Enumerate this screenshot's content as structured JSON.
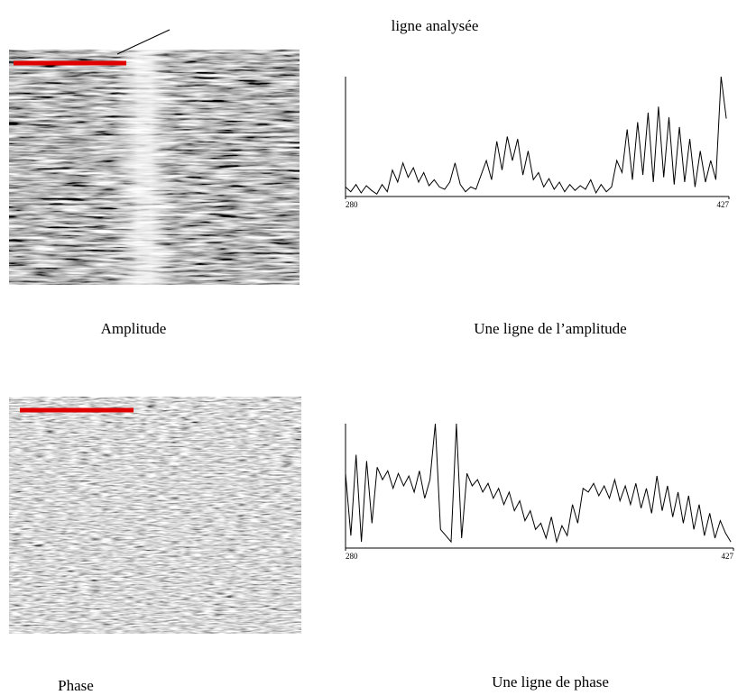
{
  "figure": {
    "annotation": "ligne analysée",
    "captions": [
      "Amplitude",
      "Une ligne de l’amplitude",
      "Phase",
      "Une ligne de phase"
    ]
  },
  "chart_data": [
    {
      "type": "line",
      "color": "#000000",
      "x": [
        280,
        282,
        284,
        286,
        288,
        290,
        292,
        294,
        296,
        298,
        300,
        302,
        304,
        306,
        308,
        310,
        312,
        314,
        316,
        318,
        320,
        322,
        324,
        326,
        328,
        330,
        332,
        334,
        336,
        338,
        340,
        342,
        344,
        346,
        348,
        350,
        352,
        354,
        356,
        358,
        360,
        362,
        364,
        366,
        368,
        370,
        372,
        374,
        376,
        378,
        380,
        382,
        384,
        386,
        388,
        390,
        392,
        394,
        396,
        398,
        400,
        402,
        404,
        406,
        408,
        410,
        412,
        414,
        416,
        418,
        420,
        422,
        424,
        426
      ],
      "values": [
        8,
        4,
        10,
        3,
        9,
        5,
        2,
        10,
        4,
        22,
        12,
        28,
        16,
        24,
        12,
        20,
        9,
        14,
        8,
        6,
        12,
        28,
        10,
        4,
        8,
        6,
        18,
        30,
        14,
        46,
        22,
        50,
        30,
        48,
        18,
        38,
        14,
        20,
        8,
        15,
        6,
        12,
        4,
        10,
        5,
        9,
        6,
        14,
        3,
        10,
        4,
        8,
        30,
        20,
        56,
        14,
        62,
        18,
        70,
        12,
        75,
        16,
        66,
        10,
        58,
        12,
        48,
        8,
        38,
        12,
        30,
        14,
        100,
        65
      ],
      "xlim": [
        280,
        427
      ],
      "xticks": [
        280,
        427
      ],
      "ylim": [
        0,
        100
      ]
    },
    {
      "type": "line",
      "color": "#000000",
      "x": [
        280,
        282,
        284,
        286,
        288,
        290,
        292,
        294,
        296,
        298,
        300,
        302,
        304,
        306,
        308,
        310,
        312,
        314,
        316,
        318,
        320,
        322,
        324,
        326,
        328,
        330,
        332,
        334,
        336,
        338,
        340,
        342,
        344,
        346,
        348,
        350,
        352,
        354,
        356,
        358,
        360,
        362,
        364,
        366,
        368,
        370,
        372,
        374,
        376,
        378,
        380,
        382,
        384,
        386,
        388,
        390,
        392,
        394,
        396,
        398,
        400,
        402,
        404,
        406,
        408,
        410,
        412,
        414,
        416,
        418,
        420,
        422,
        424,
        426
      ],
      "values": [
        60,
        10,
        75,
        5,
        70,
        20,
        65,
        55,
        62,
        48,
        60,
        50,
        58,
        45,
        62,
        40,
        55,
        100,
        15,
        10,
        5,
        100,
        8,
        60,
        50,
        55,
        45,
        52,
        40,
        48,
        35,
        45,
        30,
        38,
        22,
        30,
        15,
        20,
        8,
        25,
        5,
        18,
        10,
        35,
        20,
        48,
        45,
        52,
        42,
        50,
        40,
        55,
        38,
        50,
        35,
        52,
        32,
        48,
        28,
        58,
        30,
        50,
        25,
        45,
        20,
        42,
        15,
        35,
        10,
        28,
        8,
        22,
        12,
        5
      ],
      "xlim": [
        280,
        427
      ],
      "xticks": [
        280,
        427
      ],
      "ylim": [
        0,
        100
      ]
    }
  ]
}
